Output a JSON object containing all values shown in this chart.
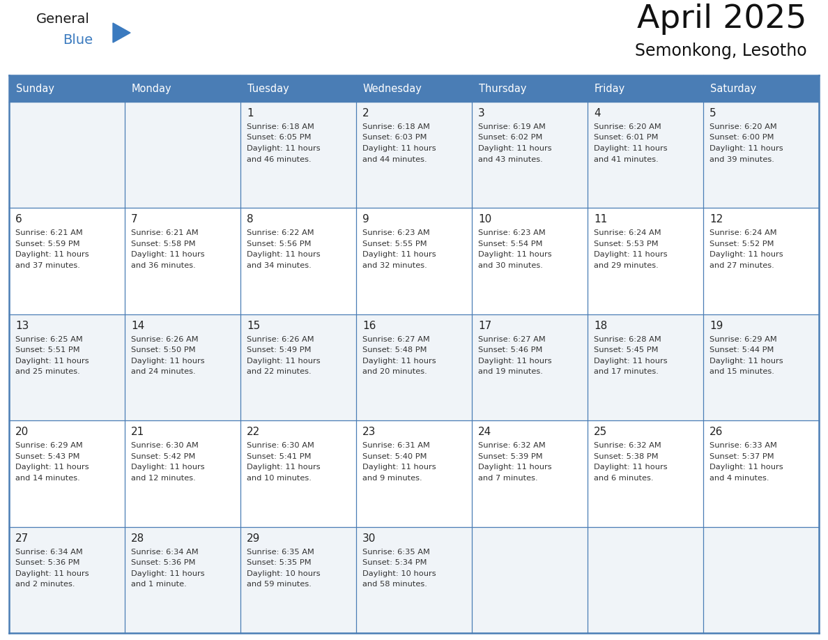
{
  "title": "April 2025",
  "subtitle": "Semonkong, Lesotho",
  "header_bg_color": "#4a7db5",
  "header_text_color": "#ffffff",
  "row_bg_even": "#ffffff",
  "row_bg_odd": "#f0f4f8",
  "grid_line_color": "#4a7db5",
  "text_color": "#333333",
  "day_num_color": "#222222",
  "day_headers": [
    "Sunday",
    "Monday",
    "Tuesday",
    "Wednesday",
    "Thursday",
    "Friday",
    "Saturday"
  ],
  "logo_color1": "#1a1a1a",
  "logo_color2": "#3a7abf",
  "title_color": "#111111",
  "calendar": [
    [
      {
        "day": "",
        "sunrise": "",
        "sunset": "",
        "daylight": ""
      },
      {
        "day": "",
        "sunrise": "",
        "sunset": "",
        "daylight": ""
      },
      {
        "day": "1",
        "sunrise": "6:18 AM",
        "sunset": "6:05 PM",
        "daylight": "11 hours and 46 minutes."
      },
      {
        "day": "2",
        "sunrise": "6:18 AM",
        "sunset": "6:03 PM",
        "daylight": "11 hours and 44 minutes."
      },
      {
        "day": "3",
        "sunrise": "6:19 AM",
        "sunset": "6:02 PM",
        "daylight": "11 hours and 43 minutes."
      },
      {
        "day": "4",
        "sunrise": "6:20 AM",
        "sunset": "6:01 PM",
        "daylight": "11 hours and 41 minutes."
      },
      {
        "day": "5",
        "sunrise": "6:20 AM",
        "sunset": "6:00 PM",
        "daylight": "11 hours and 39 minutes."
      }
    ],
    [
      {
        "day": "6",
        "sunrise": "6:21 AM",
        "sunset": "5:59 PM",
        "daylight": "11 hours and 37 minutes."
      },
      {
        "day": "7",
        "sunrise": "6:21 AM",
        "sunset": "5:58 PM",
        "daylight": "11 hours and 36 minutes."
      },
      {
        "day": "8",
        "sunrise": "6:22 AM",
        "sunset": "5:56 PM",
        "daylight": "11 hours and 34 minutes."
      },
      {
        "day": "9",
        "sunrise": "6:23 AM",
        "sunset": "5:55 PM",
        "daylight": "11 hours and 32 minutes."
      },
      {
        "day": "10",
        "sunrise": "6:23 AM",
        "sunset": "5:54 PM",
        "daylight": "11 hours and 30 minutes."
      },
      {
        "day": "11",
        "sunrise": "6:24 AM",
        "sunset": "5:53 PM",
        "daylight": "11 hours and 29 minutes."
      },
      {
        "day": "12",
        "sunrise": "6:24 AM",
        "sunset": "5:52 PM",
        "daylight": "11 hours and 27 minutes."
      }
    ],
    [
      {
        "day": "13",
        "sunrise": "6:25 AM",
        "sunset": "5:51 PM",
        "daylight": "11 hours and 25 minutes."
      },
      {
        "day": "14",
        "sunrise": "6:26 AM",
        "sunset": "5:50 PM",
        "daylight": "11 hours and 24 minutes."
      },
      {
        "day": "15",
        "sunrise": "6:26 AM",
        "sunset": "5:49 PM",
        "daylight": "11 hours and 22 minutes."
      },
      {
        "day": "16",
        "sunrise": "6:27 AM",
        "sunset": "5:48 PM",
        "daylight": "11 hours and 20 minutes."
      },
      {
        "day": "17",
        "sunrise": "6:27 AM",
        "sunset": "5:46 PM",
        "daylight": "11 hours and 19 minutes."
      },
      {
        "day": "18",
        "sunrise": "6:28 AM",
        "sunset": "5:45 PM",
        "daylight": "11 hours and 17 minutes."
      },
      {
        "day": "19",
        "sunrise": "6:29 AM",
        "sunset": "5:44 PM",
        "daylight": "11 hours and 15 minutes."
      }
    ],
    [
      {
        "day": "20",
        "sunrise": "6:29 AM",
        "sunset": "5:43 PM",
        "daylight": "11 hours and 14 minutes."
      },
      {
        "day": "21",
        "sunrise": "6:30 AM",
        "sunset": "5:42 PM",
        "daylight": "11 hours and 12 minutes."
      },
      {
        "day": "22",
        "sunrise": "6:30 AM",
        "sunset": "5:41 PM",
        "daylight": "11 hours and 10 minutes."
      },
      {
        "day": "23",
        "sunrise": "6:31 AM",
        "sunset": "5:40 PM",
        "daylight": "11 hours and 9 minutes."
      },
      {
        "day": "24",
        "sunrise": "6:32 AM",
        "sunset": "5:39 PM",
        "daylight": "11 hours and 7 minutes."
      },
      {
        "day": "25",
        "sunrise": "6:32 AM",
        "sunset": "5:38 PM",
        "daylight": "11 hours and 6 minutes."
      },
      {
        "day": "26",
        "sunrise": "6:33 AM",
        "sunset": "5:37 PM",
        "daylight": "11 hours and 4 minutes."
      }
    ],
    [
      {
        "day": "27",
        "sunrise": "6:34 AM",
        "sunset": "5:36 PM",
        "daylight": "11 hours and 2 minutes."
      },
      {
        "day": "28",
        "sunrise": "6:34 AM",
        "sunset": "5:36 PM",
        "daylight": "11 hours and 1 minute."
      },
      {
        "day": "29",
        "sunrise": "6:35 AM",
        "sunset": "5:35 PM",
        "daylight": "10 hours and 59 minutes."
      },
      {
        "day": "30",
        "sunrise": "6:35 AM",
        "sunset": "5:34 PM",
        "daylight": "10 hours and 58 minutes."
      },
      {
        "day": "",
        "sunrise": "",
        "sunset": "",
        "daylight": ""
      },
      {
        "day": "",
        "sunrise": "",
        "sunset": "",
        "daylight": ""
      },
      {
        "day": "",
        "sunrise": "",
        "sunset": "",
        "daylight": ""
      }
    ]
  ]
}
